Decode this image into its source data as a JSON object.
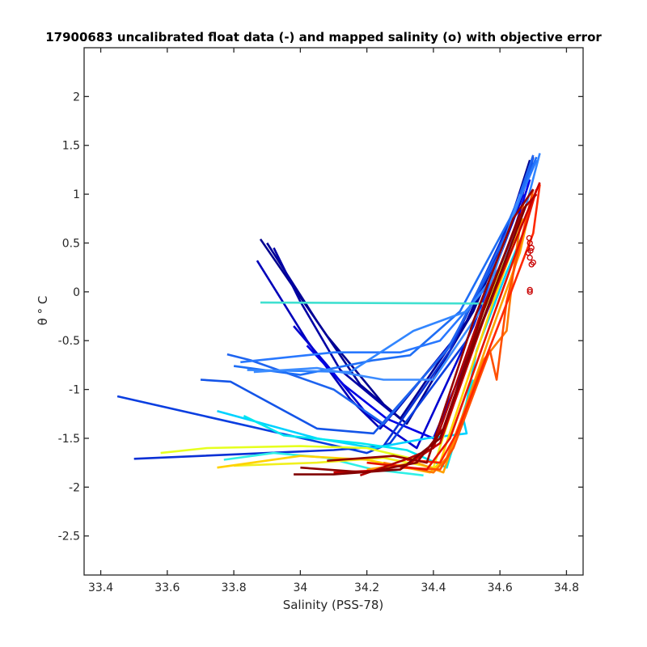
{
  "chart_data": {
    "type": "line",
    "title": "17900683 uncalibrated float data (-) and mapped salinity (o) with objective error",
    "xlabel": "Salinity (PSS-78)",
    "ylabel": "θ ° C",
    "xlim": [
      33.35,
      34.85
    ],
    "ylim": [
      -2.9,
      2.5
    ],
    "xticks": [
      "33.4",
      "33.6",
      "33.8",
      "34",
      "34.2",
      "34.4",
      "34.6",
      "34.8"
    ],
    "yticks": [
      "2",
      "1.5",
      "1",
      "0.5",
      "0",
      "-0.5",
      "-1",
      "-1.5",
      "-2",
      "-2.5"
    ],
    "xtick_values": [
      33.4,
      33.6,
      33.8,
      34.0,
      34.2,
      34.4,
      34.6,
      34.8
    ],
    "ytick_values": [
      2,
      1.5,
      1,
      0.5,
      0,
      -0.5,
      -1,
      -1.5,
      -2,
      -2.5
    ],
    "grid": false,
    "series": [
      {
        "color": "#00008f",
        "x": [
          33.88,
          34.08,
          34.25,
          34.32,
          34.52,
          34.62,
          34.69
        ],
        "y": [
          0.54,
          -0.45,
          -1.15,
          -1.35,
          -0.2,
          0.6,
          1.35
        ]
      },
      {
        "color": "#000096",
        "x": [
          33.9,
          34.05,
          34.18,
          34.3,
          34.5,
          34.66,
          34.7
        ],
        "y": [
          0.5,
          -0.3,
          -0.95,
          -1.3,
          -0.3,
          0.9,
          1.38
        ]
      },
      {
        "color": "#0000a5",
        "x": [
          33.92,
          34.0,
          34.12,
          34.28,
          34.47,
          34.65,
          34.7
        ],
        "y": [
          0.45,
          -0.1,
          -0.8,
          -1.25,
          -0.45,
          0.85,
          1.3
        ]
      },
      {
        "color": "#0000b9",
        "x": [
          33.87,
          34.02,
          34.15,
          34.24,
          34.46,
          34.6,
          34.68
        ],
        "y": [
          0.32,
          -0.5,
          -1.1,
          -1.4,
          -0.5,
          0.45,
          1.2
        ]
      },
      {
        "color": "#0000d0",
        "x": [
          33.98,
          34.08,
          34.2,
          34.35,
          34.52,
          34.67
        ],
        "y": [
          -0.35,
          -0.75,
          -1.25,
          -1.6,
          -0.35,
          1.0
        ]
      },
      {
        "color": "#0000e6",
        "x": [
          34.02,
          34.13,
          34.26,
          34.4,
          34.58,
          34.69
        ],
        "y": [
          -0.55,
          -0.95,
          -1.3,
          -1.5,
          -0.05,
          1.15
        ]
      },
      {
        "color": "#0a3ee0",
        "x": [
          33.45,
          34.2,
          34.27,
          34.5,
          34.62,
          34.69
        ],
        "y": [
          -1.07,
          -1.65,
          -1.55,
          -0.5,
          0.55,
          1.3
        ]
      },
      {
        "color": "#0a30d5",
        "x": [
          33.5,
          34.1,
          34.25,
          34.45,
          34.6,
          34.7
        ],
        "y": [
          -1.71,
          -1.62,
          -1.58,
          -0.6,
          0.5,
          1.32
        ]
      },
      {
        "color": "#1455e8",
        "x": [
          33.7,
          33.79,
          34.05,
          34.22,
          34.44,
          34.6,
          34.7
        ],
        "y": [
          -0.9,
          -0.92,
          -1.4,
          -1.45,
          -0.6,
          0.4,
          1.37
        ]
      },
      {
        "color": "#1e64f0",
        "x": [
          33.78,
          33.85,
          34.1,
          34.25,
          34.45,
          34.62,
          34.7
        ],
        "y": [
          -0.64,
          -0.7,
          -1.0,
          -1.35,
          -0.55,
          0.6,
          1.4
        ]
      },
      {
        "color": "#1e6ef5",
        "x": [
          33.8,
          34.0,
          34.22,
          34.33,
          34.48,
          34.63,
          34.71
        ],
        "y": [
          -0.76,
          -0.85,
          -0.7,
          -0.65,
          -0.2,
          0.75,
          1.38
        ]
      },
      {
        "color": "#2878ff",
        "x": [
          33.82,
          34.1,
          34.3,
          34.42,
          34.56,
          34.66,
          34.71
        ],
        "y": [
          -0.72,
          -0.62,
          -0.62,
          -0.5,
          0.05,
          0.95,
          1.35
        ]
      },
      {
        "color": "#3286ff",
        "x": [
          33.84,
          34.15,
          34.34,
          34.5,
          34.6,
          34.68,
          34.72
        ],
        "y": [
          -0.8,
          -0.82,
          -0.4,
          -0.2,
          0.25,
          0.9,
          1.42
        ]
      },
      {
        "color": "#3c8cff",
        "x": [
          33.86,
          34.05,
          34.25,
          34.4,
          34.55,
          34.66
        ],
        "y": [
          -0.82,
          -0.78,
          -0.9,
          -0.9,
          -0.15,
          1.0
        ]
      },
      {
        "color": "#40e0d0",
        "x": [
          33.88,
          34.55
        ],
        "y": [
          -0.11,
          -0.12
        ]
      },
      {
        "color": "#00d2ff",
        "x": [
          33.75,
          34.05,
          34.22,
          34.38,
          34.5,
          34.49,
          34.53,
          34.62,
          34.67
        ],
        "y": [
          -1.22,
          -1.5,
          -1.6,
          -1.5,
          -1.45,
          -1.3,
          -0.6,
          0.2,
          0.6
        ]
      },
      {
        "color": "#00e6f0",
        "x": [
          33.83,
          33.95,
          34.18,
          34.32,
          34.44,
          34.52
        ],
        "y": [
          -1.27,
          -1.47,
          -1.55,
          -1.62,
          -1.8,
          -0.9
        ]
      },
      {
        "color": "#30f0e6",
        "x": [
          33.77,
          33.92,
          34.08,
          34.22,
          34.37
        ],
        "y": [
          -1.72,
          -1.65,
          -1.7,
          -1.82,
          -1.88
        ]
      },
      {
        "color": "#e6ff1e",
        "x": [
          33.58,
          33.72,
          34.0,
          34.2,
          34.35
        ],
        "y": [
          -1.65,
          -1.6,
          -1.58,
          -1.6,
          -1.72
        ]
      },
      {
        "color": "#f0f01e",
        "x": [
          33.8,
          34.05,
          34.25,
          34.4,
          34.55,
          34.65
        ],
        "y": [
          -1.78,
          -1.75,
          -1.7,
          -1.8,
          -0.2,
          0.6
        ]
      },
      {
        "color": "#ffd200",
        "x": [
          33.75,
          34.0,
          34.2,
          34.39,
          34.42,
          34.58,
          34.67
        ],
        "y": [
          -1.8,
          -1.68,
          -1.72,
          -1.85,
          -1.75,
          -0.1,
          0.75
        ]
      },
      {
        "color": "#ffa000",
        "x": [
          34.2,
          34.35,
          34.43,
          34.57,
          34.66,
          34.7
        ],
        "y": [
          -1.82,
          -1.75,
          -1.85,
          -0.45,
          0.4,
          1.0
        ]
      },
      {
        "color": "#ff7800",
        "x": [
          34.25,
          34.4,
          34.44,
          34.55,
          34.62,
          34.64,
          34.67
        ],
        "y": [
          -1.75,
          -1.85,
          -1.7,
          -0.7,
          -0.4,
          0.2,
          0.9
        ]
      },
      {
        "color": "#ff5000",
        "x": [
          34.3,
          34.42,
          34.46,
          34.57,
          34.59,
          34.62,
          34.7
        ],
        "y": [
          -1.8,
          -1.82,
          -1.6,
          -0.6,
          -0.9,
          -0.1,
          1.05
        ]
      },
      {
        "color": "#ff2800",
        "x": [
          34.32,
          34.42,
          34.47,
          34.6,
          34.7,
          34.72
        ],
        "y": [
          -1.72,
          -1.75,
          -1.45,
          -0.3,
          0.6,
          1.1
        ]
      },
      {
        "color": "#e61400",
        "x": [
          34.2,
          34.38,
          34.45,
          34.58,
          34.68,
          34.71
        ],
        "y": [
          -1.75,
          -1.82,
          -1.5,
          -0.25,
          0.7,
          1.05
        ]
      },
      {
        "color": "#c80000",
        "x": [
          34.1,
          34.3,
          34.42,
          34.56,
          34.68,
          34.72
        ],
        "y": [
          -1.85,
          -1.82,
          -1.55,
          -0.2,
          0.8,
          1.12
        ]
      },
      {
        "color": "#b40000",
        "x": [
          34.18,
          34.33,
          34.4,
          34.55,
          34.67,
          34.71
        ],
        "y": [
          -1.88,
          -1.7,
          -1.6,
          -0.15,
          0.85,
          1.0
        ]
      },
      {
        "color": "#960000",
        "x": [
          34.08,
          34.28,
          34.38,
          34.52,
          34.64,
          34.7
        ],
        "y": [
          -1.73,
          -1.68,
          -1.75,
          -0.3,
          0.75,
          1.05
        ]
      },
      {
        "color": "#800000",
        "x": [
          33.98,
          34.1,
          34.3,
          34.42,
          34.52,
          34.68
        ],
        "y": [
          -1.87,
          -1.87,
          -1.82,
          -1.5,
          -0.55,
          0.9
        ]
      },
      {
        "color": "#8c0000",
        "x": [
          34.0,
          34.2,
          34.35,
          34.43,
          34.55,
          34.66
        ],
        "y": [
          -1.8,
          -1.85,
          -1.75,
          -1.4,
          -0.2,
          0.8
        ]
      }
    ],
    "markers": {
      "color": "#c80000",
      "x": [
        34.69,
        34.695,
        34.685,
        34.69,
        34.7,
        34.695,
        34.688,
        34.692,
        34.69,
        34.69
      ],
      "y": [
        0.5,
        0.45,
        0.4,
        0.35,
        0.3,
        0.28,
        0.55,
        0.42,
        0.02,
        0.0
      ]
    }
  }
}
